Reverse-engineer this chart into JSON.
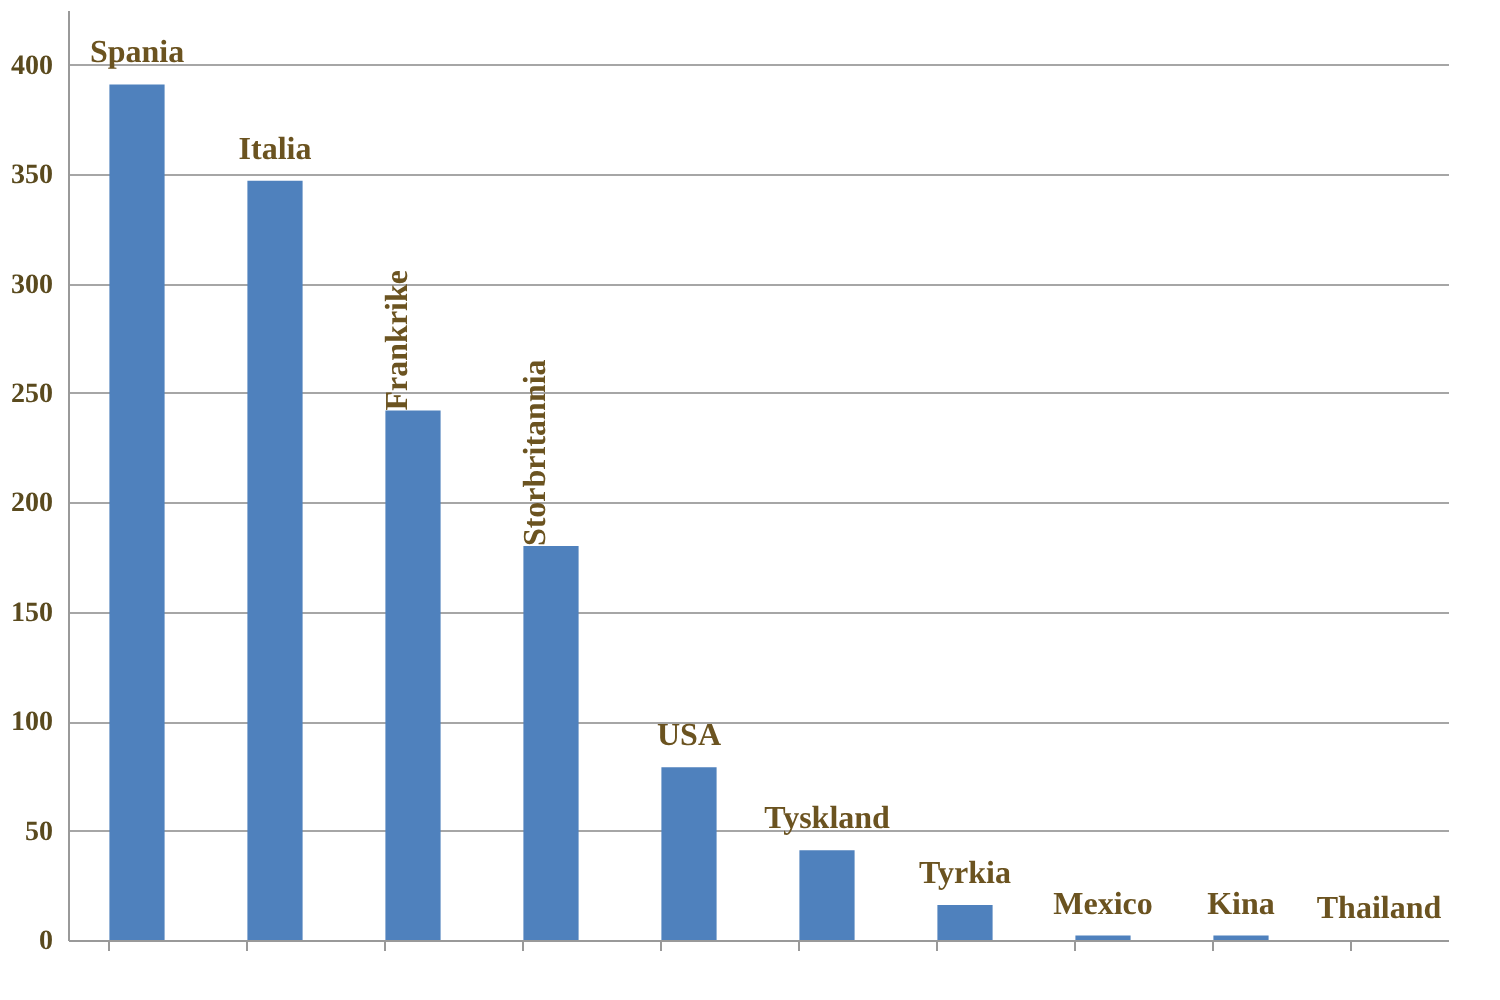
{
  "chart_data": {
    "type": "bar",
    "categories": [
      "Spania",
      "Italia",
      "Frankrike",
      "Storbritannia",
      "USA",
      "Tyskland",
      "Tyrkia",
      "Mexico",
      "Kina",
      "Thailand"
    ],
    "values": [
      391,
      347,
      242,
      180,
      79,
      41,
      16,
      2,
      2,
      0
    ],
    "color": "#4f81bd",
    "ylim": [
      0,
      425
    ],
    "yticks": [
      0,
      50,
      100,
      150,
      200,
      250,
      300,
      350,
      400
    ],
    "grid": "y",
    "tick_labels": "y"
  }
}
